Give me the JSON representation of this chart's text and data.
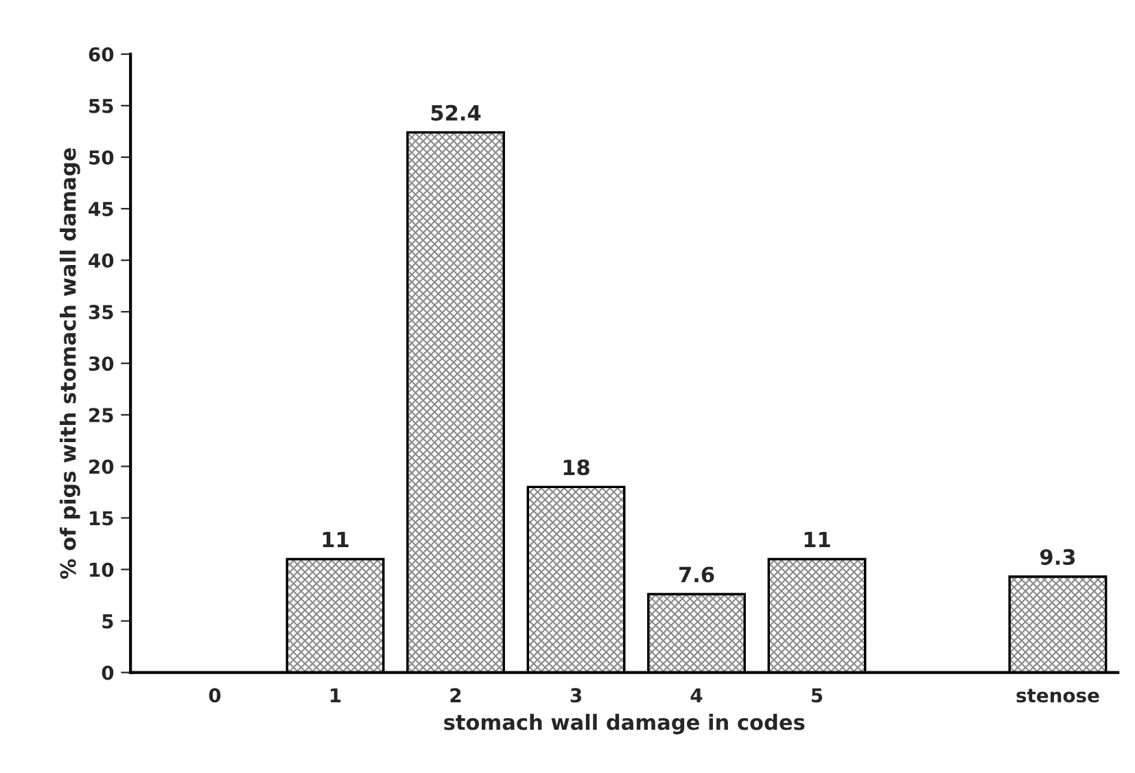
{
  "chart_data": {
    "type": "bar",
    "xlabel": "stomach wall damage in codes",
    "ylabel": "% of pigs with stomach wall damage",
    "categories": [
      "0",
      "1",
      "2",
      "3",
      "4",
      "5",
      null,
      "stenose"
    ],
    "values": [
      0,
      11,
      52.4,
      18,
      7.6,
      11,
      null,
      9.3
    ],
    "value_labels": [
      null,
      "11",
      "52.4",
      "18",
      "7.6",
      "11",
      null,
      "9.3"
    ],
    "color": "#8c8c8c",
    "ylim": [
      0,
      60
    ],
    "yticks": [
      0,
      5,
      10,
      15,
      20,
      25,
      30,
      35,
      40,
      45,
      50,
      55,
      60
    ],
    "grid": false,
    "legend": false
  }
}
